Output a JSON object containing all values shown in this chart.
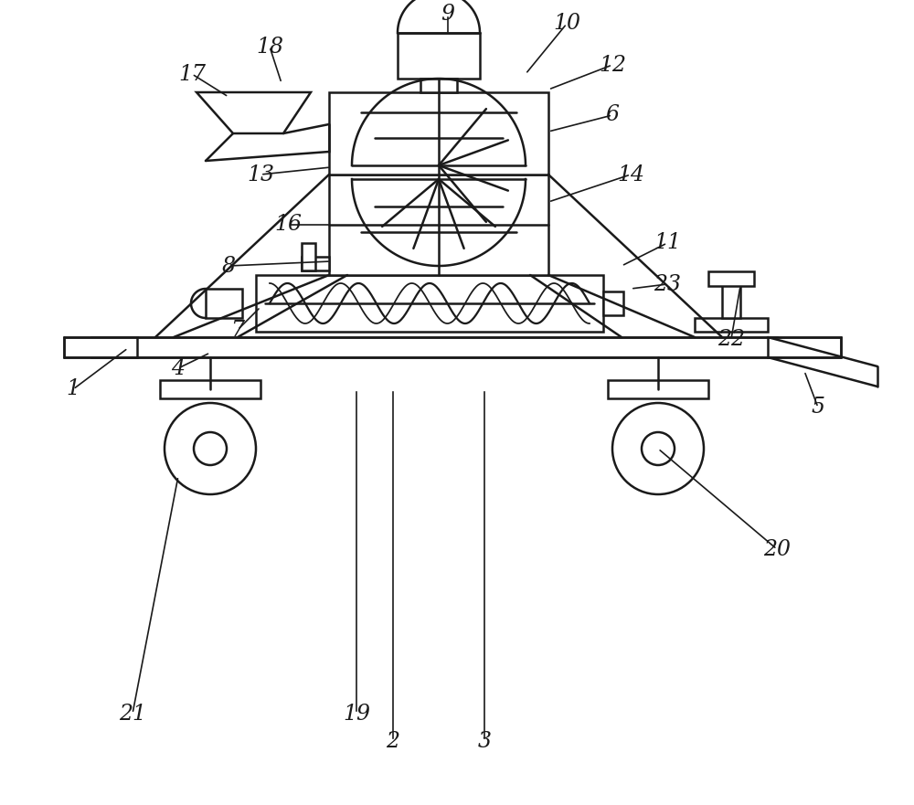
{
  "bg_color": "#ffffff",
  "line_color": "#1a1a1a",
  "line_width": 1.8,
  "fig_width": 10.0,
  "fig_height": 8.81
}
